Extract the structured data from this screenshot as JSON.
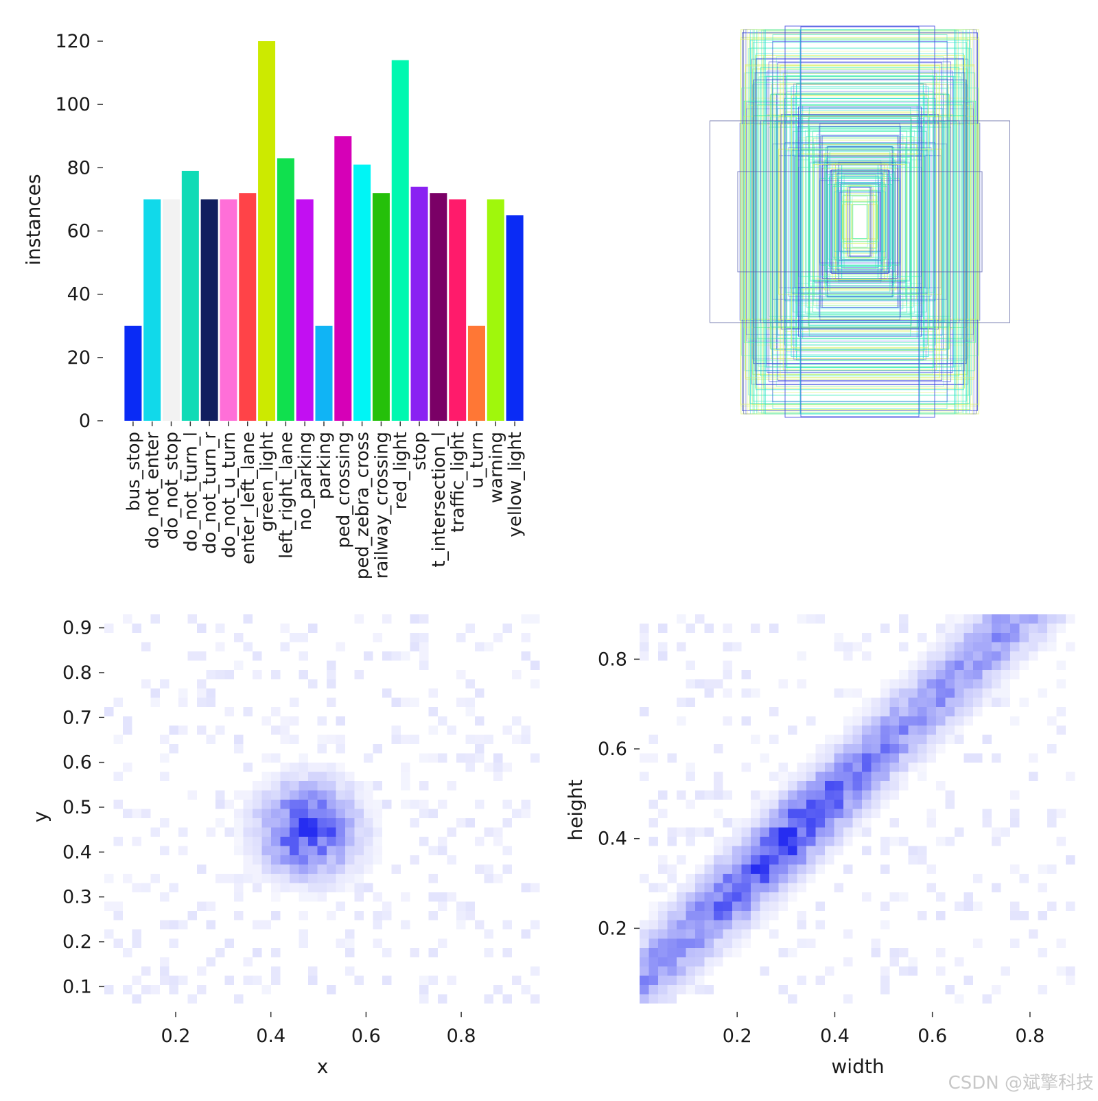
{
  "chart_data": [
    {
      "type": "bar",
      "ylabel": "instances",
      "xlabel": "",
      "ylim": [
        0,
        120
      ],
      "yticks": [
        0,
        20,
        40,
        60,
        80,
        100,
        120
      ],
      "grid": false,
      "categories": [
        "bus_stop",
        "do_not_enter",
        "do_not_stop",
        "do_not_turn_l",
        "do_not_turn_r",
        "do_not_u_turn",
        "enter_left_lane",
        "green_light",
        "left_right_lane",
        "no_parking",
        "parking",
        "ped_crossing",
        "ped_zebra_cross",
        "railway_crossing",
        "red_light",
        "stop",
        "t_intersection_l",
        "traffic_light",
        "u_turn",
        "warning",
        "yellow_light"
      ],
      "values": [
        30,
        70,
        70,
        79,
        70,
        70,
        72,
        120,
        83,
        70,
        30,
        90,
        81,
        72,
        114,
        74,
        72,
        70,
        30,
        70,
        65
      ],
      "colors": [
        "#0a2bf5",
        "#11d9ea",
        "#f2f2f2",
        "#10dbb6",
        "#121e5f",
        "#ff6fd8",
        "#ff4348",
        "#ccea00",
        "#10e04e",
        "#c20ff2",
        "#10b4f5",
        "#d600b7",
        "#00f5f5",
        "#25c00a",
        "#00f8b0",
        "#8a22f2",
        "#7a0066",
        "#ff1b6b",
        "#ff7735",
        "#a0f70c",
        "#0a2bf5"
      ]
    },
    {
      "type": "boxes",
      "title": "",
      "description_colors": [
        "#3540e0",
        "#1ee0d0",
        "#d8f060",
        "#40f0b0"
      ]
    },
    {
      "type": "heatmap",
      "xlabel": "x",
      "ylabel": "y",
      "xticks": [
        0.2,
        0.4,
        0.6,
        0.8
      ],
      "yticks": [
        0.1,
        0.2,
        0.3,
        0.4,
        0.5,
        0.6,
        0.7,
        0.8,
        0.9
      ],
      "xlim": [
        0.05,
        0.97
      ],
      "ylim": [
        0.05,
        0.93
      ],
      "center": [
        0.48,
        0.45
      ],
      "spread": [
        0.065,
        0.065
      ]
    },
    {
      "type": "heatmap",
      "xlabel": "width",
      "ylabel": "height",
      "xticks": [
        0.2,
        0.4,
        0.6,
        0.8
      ],
      "yticks": [
        0.2,
        0.4,
        0.6,
        0.8
      ],
      "xlim": [
        0.0,
        0.9
      ],
      "ylim": [
        0.02,
        0.9
      ],
      "center": [
        0.3,
        0.38
      ],
      "spread": [
        0.12,
        0.1
      ]
    }
  ],
  "watermark": "CSDN @斌擎科技"
}
